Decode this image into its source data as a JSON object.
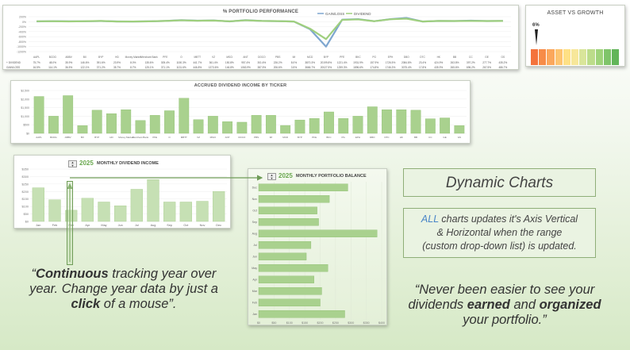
{
  "perf": {
    "title": "% PORTFOLIO PERFORMANCE",
    "legend": [
      "GAIN/LOSS",
      "DIVIDEND"
    ],
    "y_ticks": [
      "200%",
      "0%",
      "-200%",
      "-400%",
      "-600%",
      "-800%",
      "-1000%",
      "-1200%"
    ],
    "tickers": [
      "AAPL",
      "BCDG",
      "ABBV",
      "BX",
      "BYP",
      "HD",
      "Money Market",
      "Merchant Bank",
      "PFE",
      "O",
      "MBTT",
      "VZ",
      "MSCI",
      "ANT",
      "DOCO",
      "PBS",
      "IM",
      "MCD",
      "BYP",
      "PFE",
      "BKC",
      "PG",
      "EPH",
      "DBO",
      "DTC",
      "HK",
      "BB",
      "CC",
      "GE",
      "GS"
    ],
    "gain_labels": [
      "16.5%",
      "114.1%",
      "36.5%",
      "122.1%",
      "371.2%",
      "35.7%",
      "8.7%",
      "125.1%",
      "371.1%",
      "1131.6%",
      "446.8%",
      "1373.6%",
      "146.8%",
      "1063.9%",
      "387.5%",
      "206.6%",
      "3.5%",
      "3666.7%",
      "20027.5%",
      "1259.3%",
      "1896.6%",
      "174.8%",
      "1746.3%",
      "3075.4%",
      "17.8%",
      "435.9%",
      "265.6%",
      "696.2%",
      "267.5%",
      "486.7%"
    ],
    "div_labels": [
      "75.7%",
      "48.0%",
      "35.9%",
      "146.6%",
      "391.6%",
      "23.9%",
      "8.0%",
      "135.6%",
      "305.4%",
      "1150.3%",
      "441.7%",
      "361.4%",
      "150.8%",
      "957.4%",
      "301.6%",
      "226.2%",
      "8.0%",
      "3870.3%",
      "20199.8%",
      "1221.4%",
      "1931.9%",
      "157.9%",
      "1726.5%",
      "2084.8%",
      "23.4%",
      "424.9%",
      "263.8%",
      "397.2%",
      "277.7%",
      "435.2%"
    ],
    "row_labels": [
      "+ DIVIDEND",
      "GAIN/LOSS"
    ],
    "gain_values": [
      10,
      20,
      12,
      15,
      25,
      8,
      5,
      12,
      30,
      60,
      40,
      50,
      10,
      60,
      30,
      20,
      5,
      -300,
      -1000,
      80,
      100,
      20,
      100,
      150,
      5,
      30,
      25,
      40,
      25,
      30
    ],
    "div_values": [
      15,
      18,
      10,
      18,
      28,
      6,
      4,
      14,
      28,
      55,
      38,
      45,
      12,
      55,
      28,
      22,
      6,
      -280,
      -700,
      70,
      90,
      18,
      95,
      120,
      6,
      28,
      24,
      30,
      26,
      28
    ]
  },
  "asset": {
    "title": "ASSET VS GROWTH",
    "marker_label": "6%",
    "segments": [
      "#f4733c",
      "#f78c48",
      "#fba75c",
      "#fdc470",
      "#fee085",
      "#f7e79a",
      "#d9e59a",
      "#bcdc8a",
      "#9fd37a",
      "#7fc46a",
      "#62b559"
    ]
  },
  "accrued": {
    "title": "ACCRUED DIVIDEND INCOME BY TICKER",
    "y_ticks": [
      "$2,500",
      "$2,000",
      "$1,500",
      "$1,000",
      "$500",
      "$0"
    ],
    "tickers": [
      "AAPL",
      "BCDG",
      "ABBV",
      "BX",
      "BYP",
      "HD",
      "Money Market",
      "Merchant Bank",
      "PFE",
      "O",
      "MBTT",
      "VZ",
      "MSCI",
      "ANT",
      "DOCO",
      "PBS",
      "IM",
      "MCD",
      "BYP",
      "PFE",
      "BKC",
      "PG",
      "EPH",
      "DBO",
      "DTC",
      "HK",
      "BB",
      "CC",
      "GE",
      "GS"
    ],
    "values": [
      2150,
      1000,
      2200,
      450,
      1350,
      1150,
      1380,
      750,
      1050,
      1320,
      2050,
      800,
      1000,
      680,
      650,
      1050,
      1050,
      460,
      780,
      870,
      1250,
      870,
      1000,
      1550,
      1380,
      1380,
      1350,
      850,
      900,
      450
    ]
  },
  "monthly": {
    "year": "2025",
    "title": "MONTHLY DIVIDEND INCOME",
    "y_ticks": [
      "$350",
      "$300",
      "$250",
      "$200",
      "$150",
      "$100",
      "$50",
      "$0"
    ],
    "months": [
      "Jan",
      "Feb",
      "Mar",
      "Apr",
      "May",
      "Jun",
      "Jul",
      "Aug",
      "Sep",
      "Oct",
      "Nov",
      "Dec"
    ],
    "values": [
      225,
      145,
      75,
      155,
      130,
      105,
      215,
      280,
      130,
      130,
      135,
      200
    ]
  },
  "balance": {
    "year": "2025",
    "title": "MONTHLY PORTFOLIO BALANCE",
    "months": [
      "Dec",
      "Nov",
      "Oct",
      "Sep",
      "Aug",
      "Jul",
      "Jun",
      "May",
      "Apr",
      "Mar",
      "Feb",
      "Jan"
    ],
    "values": [
      290,
      230,
      190,
      195,
      385,
      170,
      155,
      225,
      180,
      205,
      200,
      280
    ],
    "x_ticks": [
      "$0",
      "$50",
      "$100",
      "$150",
      "$200",
      "$250",
      "$300",
      "$350",
      "$400"
    ]
  },
  "dynamic": {
    "label": "Dynamic Charts"
  },
  "desc": {
    "all": "ALL",
    "line1": " charts updates it's Axis Vertical",
    "line2": "& Horizontal when the range",
    "line3": "(custom drop-down list) is updated."
  },
  "quote1": {
    "open": "“",
    "b1": "Continuous",
    "t1": " tracking year over",
    "t2": "year. Change year data by just a",
    "b2": "click",
    "t3": " of a mouse”."
  },
  "quote2": {
    "l1": "“Never been easier to see your",
    "l2a": "dividends ",
    "b1": "earned",
    "l2b": " and ",
    "b2": "organized",
    "l3": "your portfolio.”"
  }
}
